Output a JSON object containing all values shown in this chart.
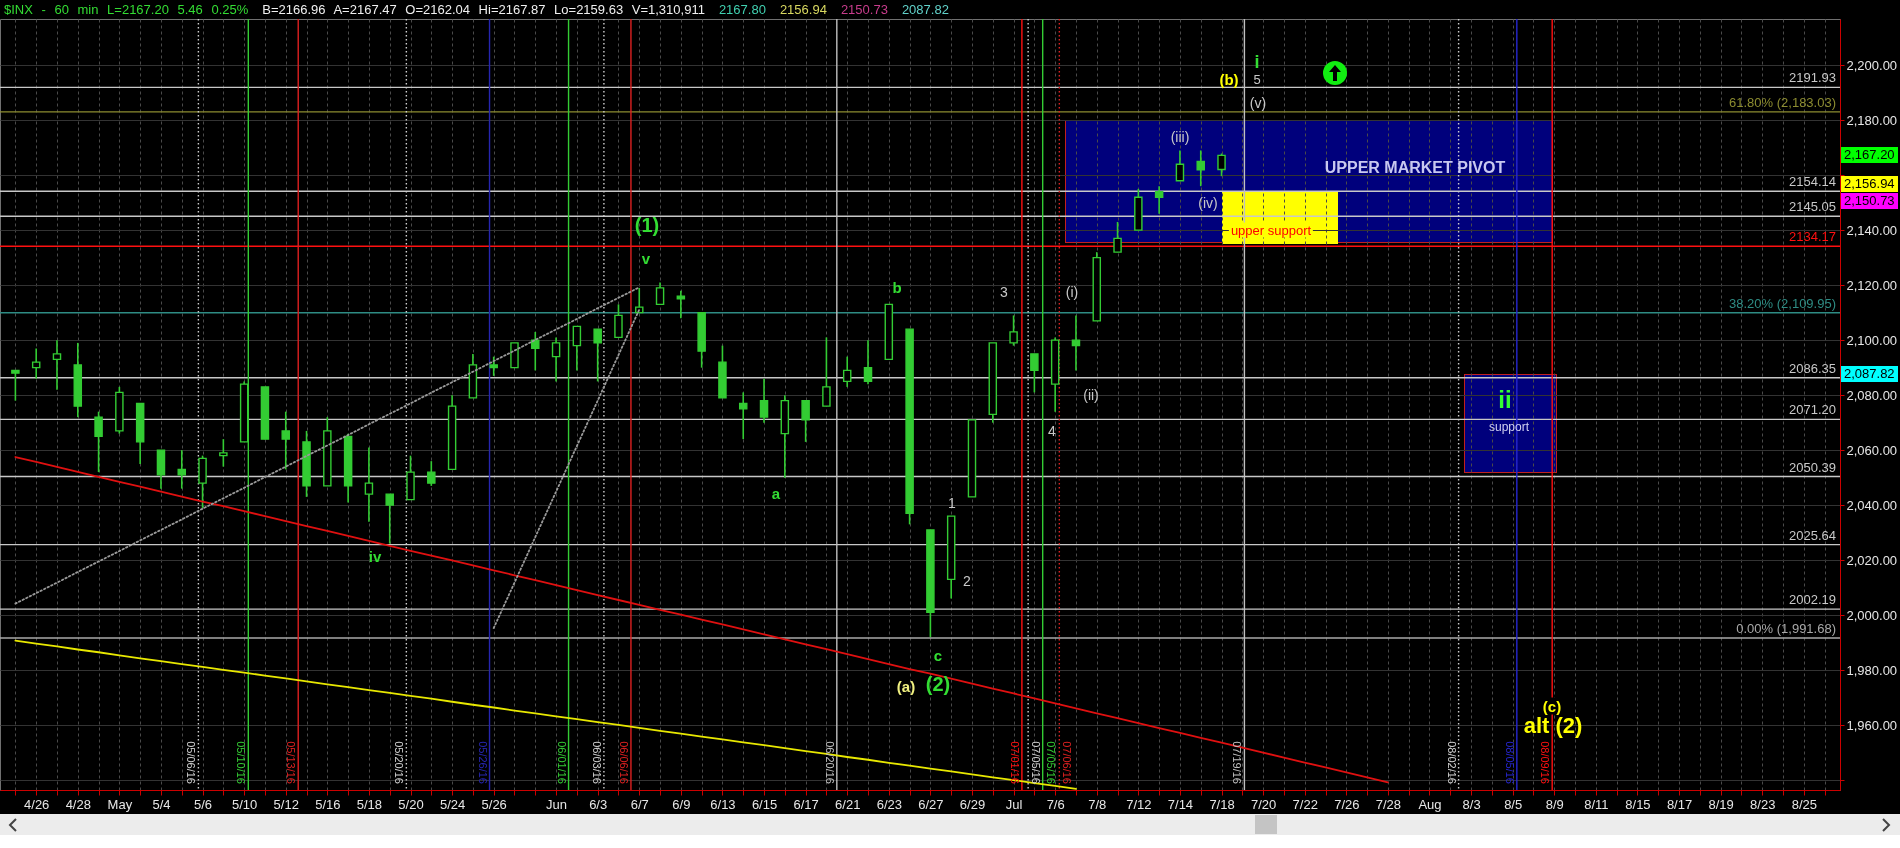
{
  "chart_data": {
    "type": "candlestick",
    "title": "$INX - 60 min L=2167.20 5.46 0.25%",
    "subtitle": "B=2166.96 A=2167.47 O=2162.04 Hi=2167.87 Lo=2159.63 V=1,310,911",
    "color": "#33cc33",
    "categories": [
      null,
      "4/26",
      null,
      "4/28",
      null,
      "May",
      null,
      "5/4",
      null,
      "5/6",
      null,
      "5/10",
      null,
      "5/12",
      null,
      "5/16",
      null,
      "5/18",
      null,
      "5/20",
      null,
      "5/24",
      null,
      "5/26",
      null,
      null,
      "Jun",
      null,
      "6/3",
      null,
      "6/7",
      null,
      "6/9",
      null,
      "6/13",
      null,
      "6/15",
      null,
      "6/17",
      null,
      "6/21",
      null,
      "6/23",
      null,
      "6/27",
      null,
      "6/29",
      null,
      "Jul",
      null,
      "7/6",
      null,
      "7/8",
      null,
      "7/12",
      null,
      "7/14",
      null,
      "7/18",
      null,
      "7/20",
      null,
      "7/22",
      null,
      "7/26",
      null,
      "7/28",
      null,
      "Aug",
      null,
      "8/3",
      null,
      "8/5",
      null,
      "8/9",
      null,
      "8/11",
      null,
      "8/15",
      null,
      "8/17",
      null,
      "8/19",
      null,
      "8/23",
      null,
      "8/25",
      null
    ],
    "ohlc": [
      [
        2089,
        2089,
        2078,
        2088
      ],
      [
        2090,
        2097,
        2086,
        2092
      ],
      [
        2093,
        2100,
        2082,
        2095
      ],
      [
        2091,
        2099,
        2072,
        2076
      ],
      [
        2072,
        2074,
        2052,
        2065
      ],
      [
        2067,
        2083,
        2066,
        2081
      ],
      [
        2077,
        2077,
        2055,
        2063
      ],
      [
        2060,
        2060,
        2046,
        2051
      ],
      [
        2053,
        2060,
        2046,
        2051
      ],
      [
        2048,
        2058,
        2039,
        2057
      ],
      [
        2058,
        2064,
        2054,
        2059
      ],
      [
        2063,
        2085,
        2063,
        2084
      ],
      [
        2083,
        2083,
        2064,
        2064
      ],
      [
        2067,
        2074,
        2053,
        2064
      ],
      [
        2063,
        2067,
        2043,
        2047
      ],
      [
        2047,
        2072,
        2047,
        2067
      ],
      [
        2065,
        2066,
        2041,
        2047
      ],
      [
        2044,
        2061,
        2034,
        2048
      ],
      [
        2044,
        2044,
        2026,
        2040
      ],
      [
        2042,
        2058,
        2042,
        2052
      ],
      [
        2052,
        2056,
        2047,
        2048
      ],
      [
        2053,
        2080,
        2053,
        2076
      ],
      [
        2079,
        2095,
        2079,
        2091
      ],
      [
        2091,
        2094,
        2087,
        2090
      ],
      [
        2090,
        2099,
        2090,
        2099
      ],
      [
        2100,
        2103,
        2089,
        2097
      ],
      [
        2094,
        2101,
        2085,
        2099
      ],
      [
        2098,
        2105,
        2089,
        2105
      ],
      [
        2104,
        2104,
        2085,
        2099
      ],
      [
        2101,
        2113,
        2101,
        2109
      ],
      [
        2110,
        2119,
        2110,
        2112
      ],
      [
        2113,
        2121,
        2113,
        2119
      ],
      [
        2116,
        2118,
        2108,
        2115
      ],
      [
        2110,
        2110,
        2090,
        2096
      ],
      [
        2092,
        2098,
        2079,
        2079
      ],
      [
        2077,
        2081,
        2064,
        2075
      ],
      [
        2078,
        2086,
        2070,
        2072
      ],
      [
        2066,
        2080,
        2050,
        2078
      ],
      [
        2078,
        2078,
        2063,
        2071
      ],
      [
        2076,
        2101,
        2076,
        2083
      ],
      [
        2085,
        2094,
        2083,
        2089
      ],
      [
        2090,
        2100,
        2084,
        2085
      ],
      [
        2093,
        2113,
        2093,
        2113
      ],
      [
        2104,
        2104,
        2033,
        2037
      ],
      [
        2031,
        2031,
        1992,
        2001
      ],
      [
        2013,
        2036,
        2006,
        2036
      ],
      [
        2043,
        2071,
        2043,
        2071
      ],
      [
        2073,
        2099,
        2070,
        2099
      ],
      [
        2099,
        2109,
        2098,
        2103
      ],
      [
        2095,
        2095,
        2081,
        2089
      ],
      [
        2084,
        2101,
        2074,
        2100
      ],
      [
        2100,
        2109,
        2089,
        2098
      ],
      [
        2107,
        2132,
        2107,
        2130
      ],
      [
        2132,
        2143,
        2132,
        2137
      ],
      [
        2140,
        2155,
        2140,
        2152
      ],
      [
        2154,
        2156,
        2146,
        2152
      ],
      [
        2158,
        2169,
        2158,
        2164
      ],
      [
        2165,
        2169,
        2156,
        2162
      ],
      [
        2162.04,
        2167.87,
        2159.63,
        2167.2
      ],
      null,
      null,
      null,
      null,
      null,
      null,
      null,
      null,
      null,
      null,
      null,
      null,
      null,
      null,
      null,
      null,
      null,
      null,
      null,
      null,
      null,
      null,
      null,
      null,
      null,
      null,
      null,
      null,
      null
    ],
    "series": [
      {
        "type": "line",
        "color": "#e01010",
        "values": [
          2057.5,
          2055.7,
          2053.9,
          2052.1,
          2050.3,
          2048.5,
          2046.7,
          2044.9,
          2043.1,
          2041.3,
          2039.6,
          2037.8,
          2036.0,
          2034.2,
          2032.4,
          2030.6,
          2028.8,
          2027.0,
          2025.2,
          2023.4,
          2021.6,
          2019.9,
          2018.1,
          2016.3,
          2014.5,
          2012.7,
          2010.9,
          2009.1,
          2007.3,
          2005.5,
          2003.7,
          2001.9,
          2000.2,
          1998.4,
          1996.6,
          1994.8,
          1993.0,
          1991.2,
          1989.4,
          1987.6,
          1985.8,
          1984.0,
          1982.2,
          1980.4,
          1978.7,
          1976.9,
          1975.1,
          1973.3,
          1971.5,
          1969.7,
          1967.9,
          1966.1,
          1964.3,
          1962.5,
          1960.7,
          1958.9,
          1957.2,
          1955.4,
          1953.6,
          1951.8,
          1950.0,
          1948.2,
          1946.4,
          1944.6,
          1942.8,
          1941.0,
          1939.2,
          null,
          null,
          null,
          null,
          null,
          null,
          null,
          null,
          null,
          null,
          null,
          null,
          null,
          null,
          null,
          null,
          null,
          null,
          null,
          null,
          null
        ]
      },
      {
        "type": "line",
        "color": "#e8e800",
        "values": [
          1990.7,
          1989.6,
          1988.6,
          1987.5,
          1986.5,
          1985.4,
          1984.3,
          1983.3,
          1982.2,
          1981.2,
          1980.1,
          1979.1,
          1978.0,
          1977.0,
          1975.9,
          1974.8,
          1973.8,
          1972.7,
          1971.7,
          1970.6,
          1969.6,
          1968.5,
          1967.4,
          1966.4,
          1965.3,
          1964.3,
          1963.2,
          1962.2,
          1961.1,
          1960.1,
          1959.0,
          1957.9,
          1956.9,
          1955.8,
          1954.8,
          1953.7,
          1952.7,
          1951.6,
          1950.5,
          1949.5,
          1948.4,
          1947.4,
          1946.3,
          1945.3,
          1944.2,
          1943.2,
          1942.1,
          1941.0,
          1940.0,
          1938.9,
          1937.9,
          1936.8,
          null,
          null,
          null,
          null,
          null,
          null,
          null,
          null,
          null,
          null,
          null,
          null,
          null,
          null,
          null,
          null,
          null,
          null,
          null,
          null,
          null,
          null,
          null,
          null,
          null,
          null,
          null,
          null,
          null,
          null,
          null,
          null,
          null,
          null,
          null,
          null
        ]
      },
      {
        "type": "line",
        "color": "#9a9a9a",
        "line_style": "dotted",
        "values": [
          2004.2,
          2008.0,
          2011.8,
          2015.7,
          2019.5,
          2023.3,
          2027.2,
          2031.0,
          2034.8,
          2038.7,
          2042.5,
          2046.3,
          2050.2,
          2054.0,
          2057.9,
          2061.7,
          2065.5,
          2069.4,
          2073.2,
          2077.0,
          2080.9,
          2084.7,
          2088.5,
          2092.4,
          2096.2,
          2100.1,
          2103.9,
          2107.7,
          2111.6,
          2115.4,
          2119.2,
          null,
          null,
          null,
          null,
          null,
          null,
          null,
          null,
          null,
          null,
          null,
          null,
          null,
          null,
          null,
          null,
          null,
          null,
          null,
          null,
          null,
          null,
          null,
          null,
          null,
          null,
          null,
          null,
          null,
          null,
          null,
          null,
          null,
          null,
          null,
          null,
          null,
          null,
          null,
          null,
          null,
          null,
          null,
          null,
          null,
          null,
          null,
          null,
          null,
          null,
          null,
          null,
          null,
          null,
          null,
          null,
          null
        ]
      },
      {
        "type": "line",
        "color": "#9a9a9a",
        "line_style": "dotted",
        "values": [
          null,
          null,
          null,
          null,
          null,
          null,
          null,
          null,
          null,
          null,
          null,
          null,
          null,
          null,
          null,
          null,
          null,
          null,
          null,
          null,
          null,
          null,
          null,
          1995.3,
          2011.8,
          2028.4,
          2044.9,
          2061.5,
          2078.0,
          2094.6,
          2111.1,
          null,
          null,
          null,
          null,
          null,
          null,
          null,
          null,
          null,
          null,
          null,
          null,
          null,
          null,
          null,
          null,
          null,
          null,
          null,
          null,
          null,
          null,
          null,
          null,
          null,
          null,
          null,
          null,
          null,
          null,
          null,
          null,
          null,
          null,
          null,
          null,
          null,
          null,
          null,
          null,
          null,
          null,
          null,
          null,
          null,
          null,
          null,
          null,
          null,
          null,
          null,
          null,
          null,
          null,
          null,
          null,
          null
        ]
      }
    ],
    "ylim": [
      1936.4,
      2216.8
    ],
    "yticks": [
      {
        "value": 1940,
        "label": null
      },
      {
        "value": 1960,
        "label": "1,960.00"
      },
      {
        "value": 1980,
        "label": "1,980.00"
      },
      {
        "value": 2000,
        "label": "2,000.00"
      },
      {
        "value": 2020,
        "label": "2,020.00"
      },
      {
        "value": 2040,
        "label": "2,040.00"
      },
      {
        "value": 2060,
        "label": "2,060.00"
      },
      {
        "value": 2080,
        "label": "2,080.00"
      },
      {
        "value": 2100,
        "label": "2,100.00"
      },
      {
        "value": 2120,
        "label": "2,120.00"
      },
      {
        "value": 2140,
        "label": "2,140.00"
      },
      {
        "value": 2160,
        "label": null
      },
      {
        "value": 2180,
        "label": "2,180.00"
      },
      {
        "value": 2200,
        "label": "2,200.00"
      }
    ],
    "grid": true,
    "ref_lines": [
      {
        "axis": "y",
        "value": 2191.93,
        "label": "2191.93",
        "color": "#c8c8c8"
      },
      {
        "axis": "y",
        "value": 2183.03,
        "label": "61.80% (2,183.03)",
        "color": "#8c8c30"
      },
      {
        "axis": "y",
        "value": 2154.14,
        "label": "2154.14",
        "color": "#c8c8c8"
      },
      {
        "axis": "y",
        "value": 2145.05,
        "label": "2145.05",
        "color": "#c8c8c8"
      },
      {
        "axis": "y",
        "value": 2134.17,
        "label": "2134.17",
        "color": "#ff1010"
      },
      {
        "axis": "y",
        "value": 2109.95,
        "label": "38.20% (2,109.95)",
        "color": "#2e8c84"
      },
      {
        "axis": "y",
        "value": 2086.35,
        "label": "2086.35",
        "color": "#c8c8c8"
      },
      {
        "axis": "y",
        "value": 2071.2,
        "label": "2071.20",
        "color": "#c8c8c8"
      },
      {
        "axis": "y",
        "value": 2050.39,
        "label": "2050.39",
        "color": "#c8c8c8"
      },
      {
        "axis": "y",
        "value": 2025.64,
        "label": "2025.64",
        "color": "#c8c8c8"
      },
      {
        "axis": "y",
        "value": 2002.19,
        "label": "2002.19",
        "color": "#c8c8c8"
      },
      {
        "axis": "y",
        "value": 1991.68,
        "label": "0.00% (1,991.68)",
        "color": "#a8a8a8"
      }
    ],
    "annotations": [
      "2167.80",
      "2156.94",
      "2150.73",
      "2087.82",
      "2,167.20",
      "2,156.94",
      "2,150.73",
      "2,087.82",
      "(1)",
      "v",
      "iv",
      "a",
      "b",
      "c",
      "(2)",
      "(a)",
      "1",
      "2",
      "3",
      "4",
      "(i)",
      "(ii)",
      "(iii)",
      "(iv)",
      "(v)",
      "5",
      "i",
      "(b)",
      "UPPER MARKET PIVOT",
      "upper support",
      "ii",
      "support",
      "(c)",
      "alt (2)",
      "05/06/16",
      "05/10/16",
      "05/13/16",
      "05/20/16",
      "05/26/16",
      "06/01/16",
      "06/03/16",
      "06/06/16",
      "06/20/16",
      "07/01/16",
      "07/05/16",
      "07/05/16",
      "07/06/16",
      "07/19/16",
      "08/02/16",
      "08/05/16",
      "08/09/16"
    ]
  }
}
